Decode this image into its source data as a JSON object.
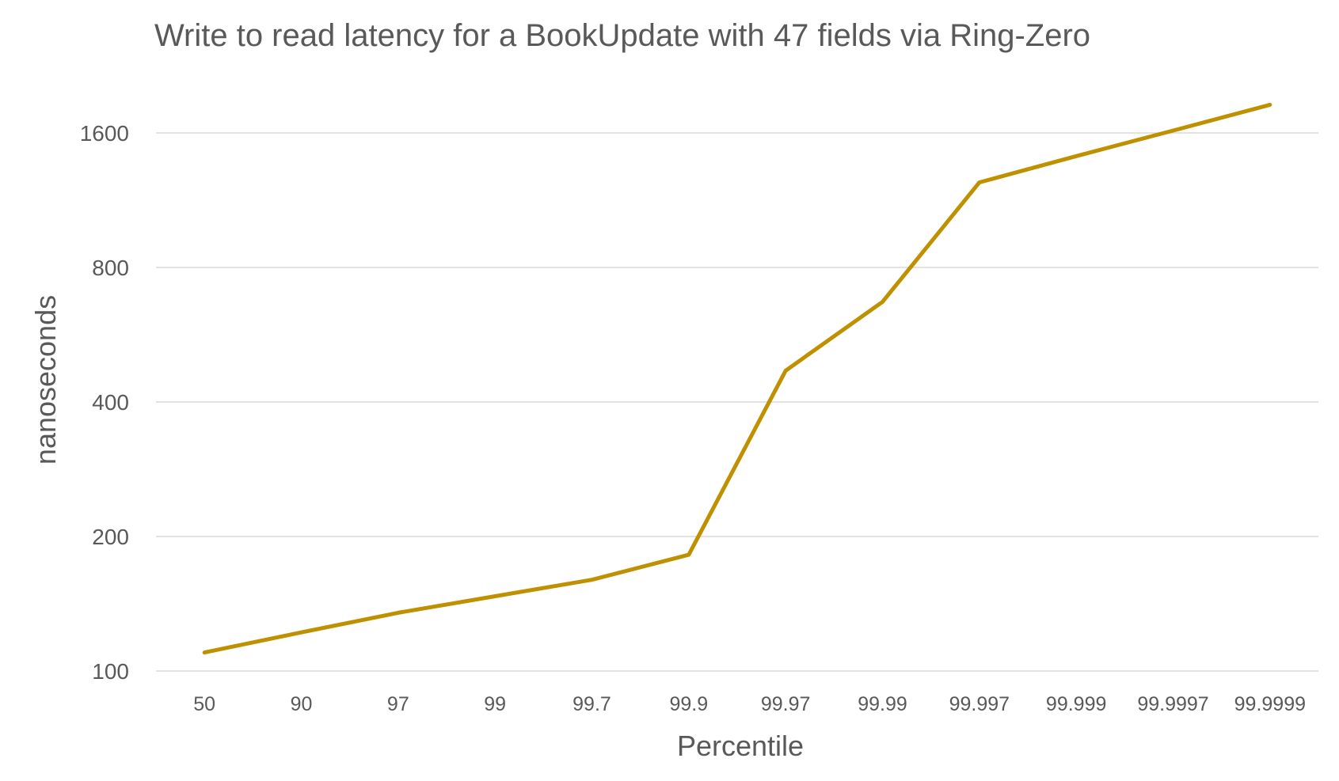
{
  "chart_data": {
    "type": "line",
    "title": "Write to read latency for a BookUpdate with 47 fields via Ring-Zero",
    "xlabel": "Percentile",
    "ylabel": "nanoseconds",
    "y_scale": "log2",
    "ylim": [
      100,
      1800
    ],
    "y_ticks": [
      100,
      200,
      400,
      800,
      1600
    ],
    "y_tick_labels": [
      "100",
      "200",
      "400",
      "800",
      "1600"
    ],
    "grid": true,
    "legend": "none",
    "categories": [
      "50",
      "90",
      "97",
      "99",
      "99.7",
      "99.9",
      "99.97",
      "99.99",
      "99.997",
      "99.999",
      "99.9997",
      "99.9999"
    ],
    "series": [
      {
        "color": "#BF9000",
        "values": [
          110,
          122,
          135,
          147,
          160,
          182,
          470,
          670,
          1240,
          1420,
          1620,
          1850
        ]
      }
    ]
  }
}
